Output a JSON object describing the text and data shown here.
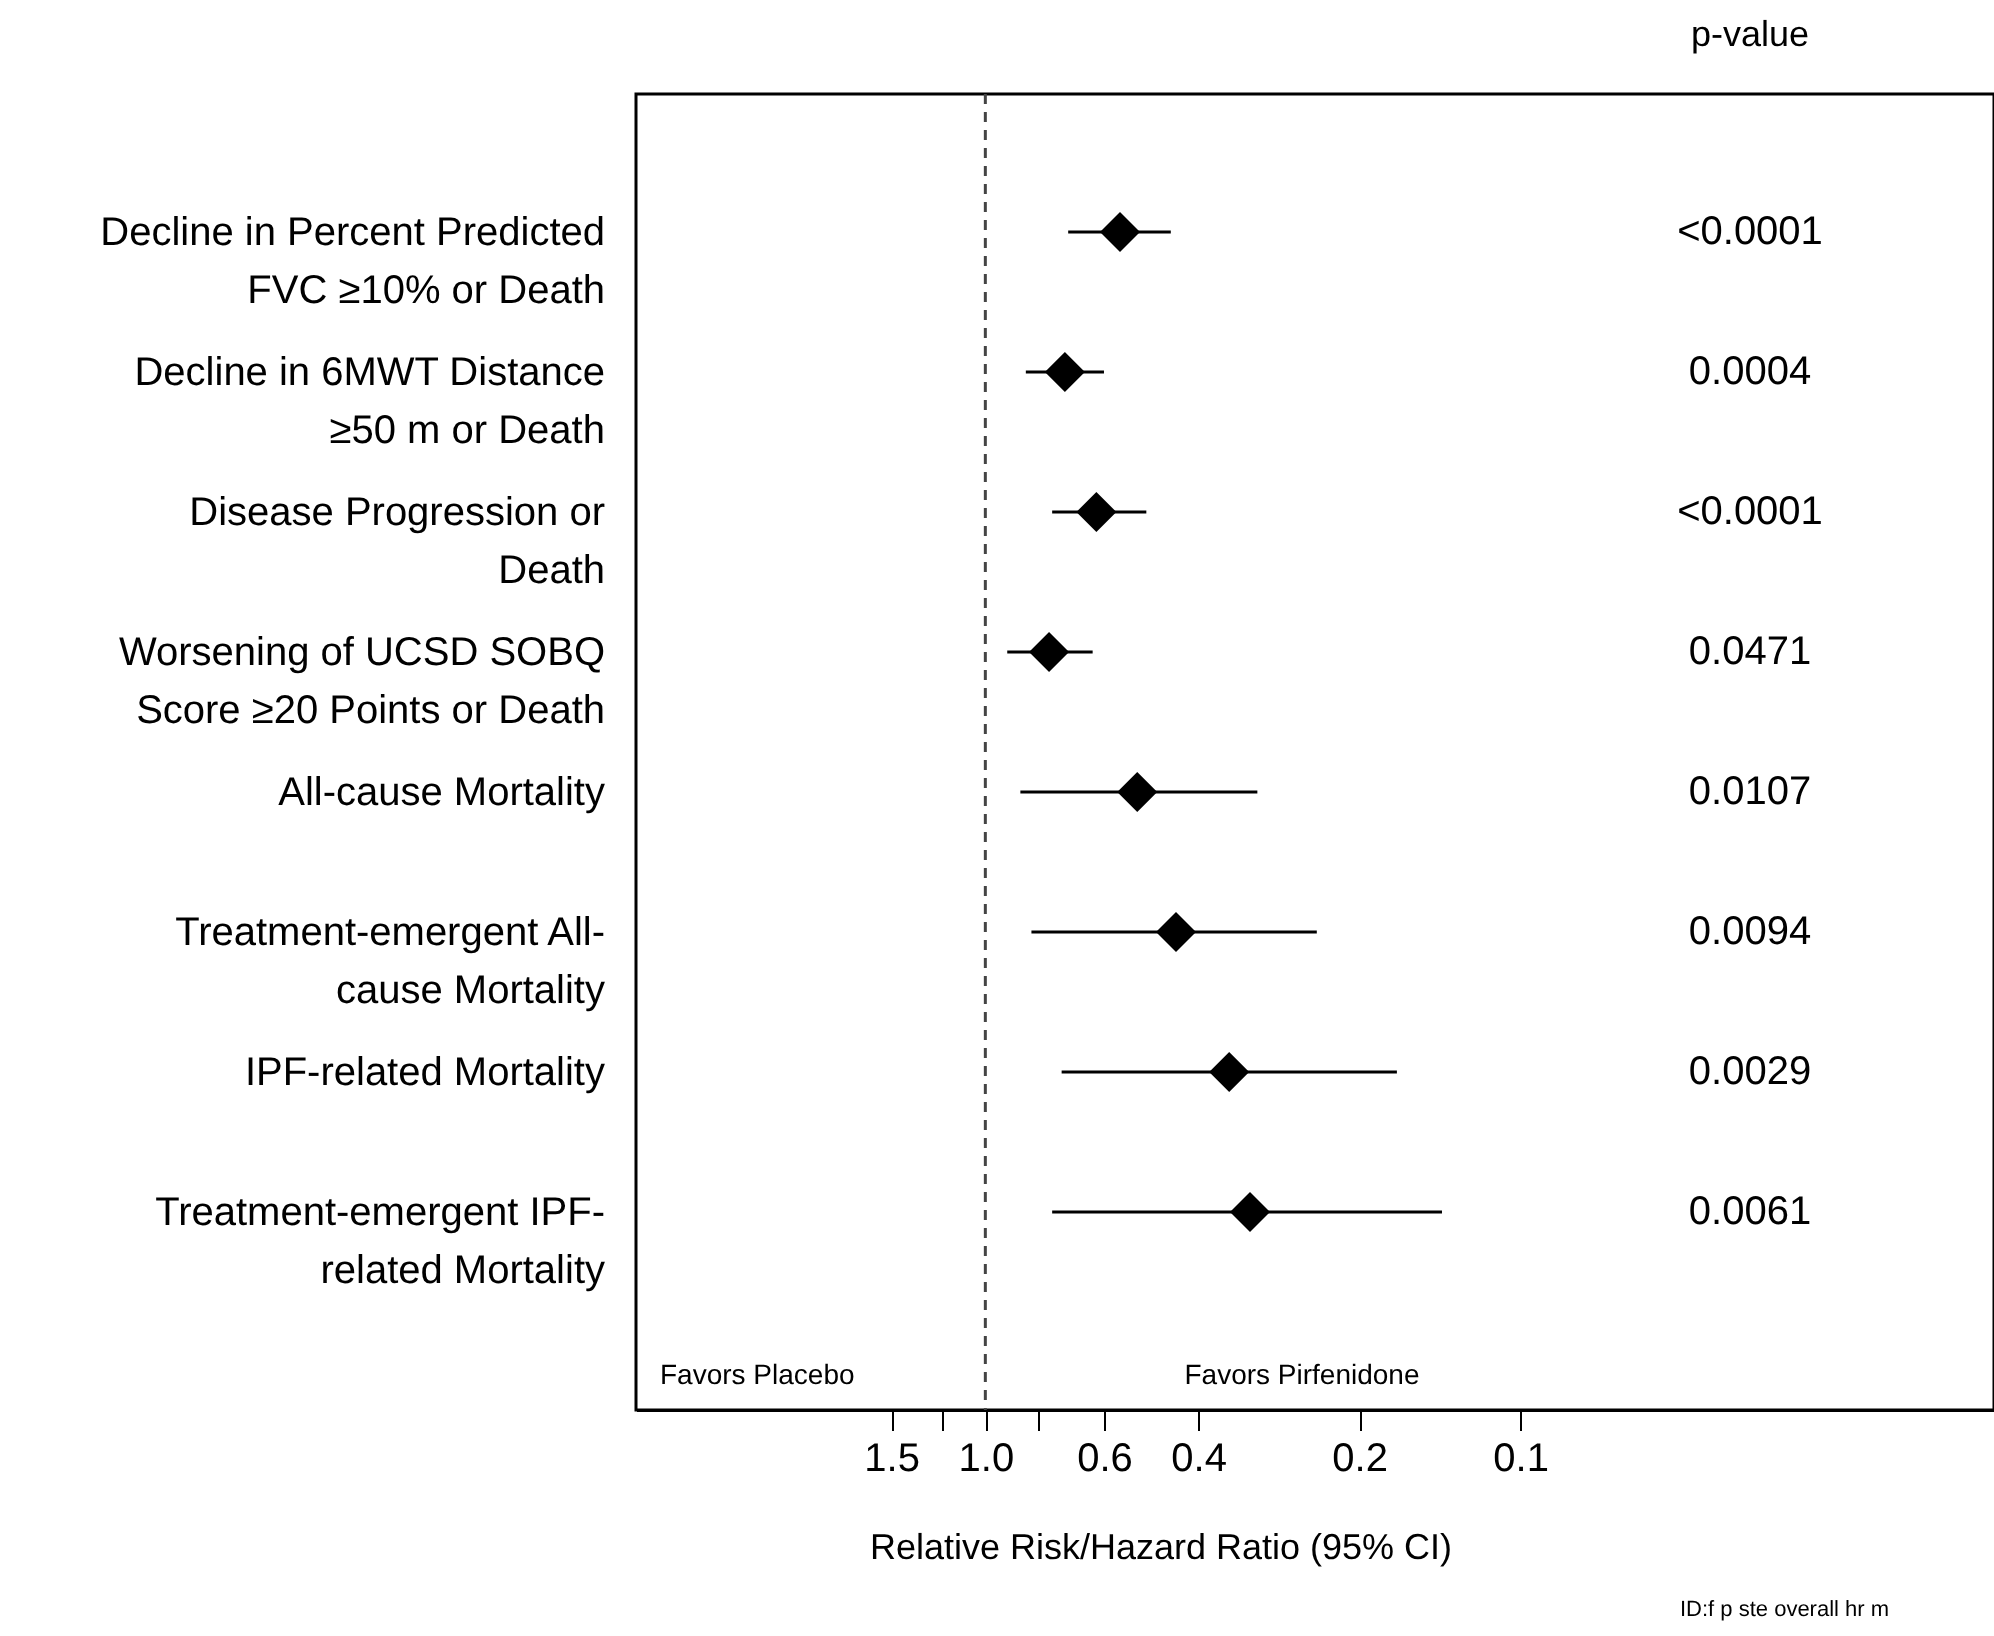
{
  "chart_data": {
    "type": "scatter",
    "orientation": "horizontal",
    "xlabel": "Relative Risk/Hazard Ratio (95% CI)",
    "categories": [
      "Decline in Percent Predicted FVC ≥10% or Death",
      "Decline in 6MWT Distance ≥50 m or Death",
      "Disease Progression or Death",
      "Worsening of UCSD SOBQ Score ≥20 Points or Death",
      "All-cause Mortality",
      "Treatment-emergent All-cause Mortality",
      "IPF-related Mortality",
      "Treatment-emergent IPF-related Mortality"
    ],
    "series": [
      {
        "color": "#000000",
        "values": [
          0.56,
          0.71,
          0.62,
          0.76,
          0.52,
          0.44,
          0.35,
          0.32
        ],
        "errors": [
          [
            0.45,
            0.7
          ],
          [
            0.6,
            0.84
          ],
          [
            0.5,
            0.75
          ],
          [
            0.63,
            0.91
          ],
          [
            0.31,
            0.86
          ],
          [
            0.24,
            0.82
          ],
          [
            0.17,
            0.72
          ],
          [
            0.14,
            0.75
          ]
        ]
      }
    ],
    "marker": "diamond",
    "log": "x",
    "xlim": [
      4.5,
      0.013
    ],
    "xticks": [
      1.5,
      {
        "value": 1.2,
        "label": null
      },
      {
        "value": 1,
        "label": "1.0"
      },
      {
        "value": 0.8,
        "label": null
      },
      0.6,
      0.4,
      0.2,
      0.1
    ],
    "ref_lines": [
      {
        "axis": "x",
        "value": 1,
        "line_style": "dashed",
        "color": "#444444"
      }
    ],
    "annotations": [
      "p-value",
      "<0.0001",
      "0.0004",
      "<0.0001",
      "0.0471",
      "0.0107",
      "0.0094",
      "0.0029",
      "0.0061",
      "Favors Placebo",
      "Favors Pirfenidone",
      "ID:f p ste overall hr m"
    ]
  }
}
